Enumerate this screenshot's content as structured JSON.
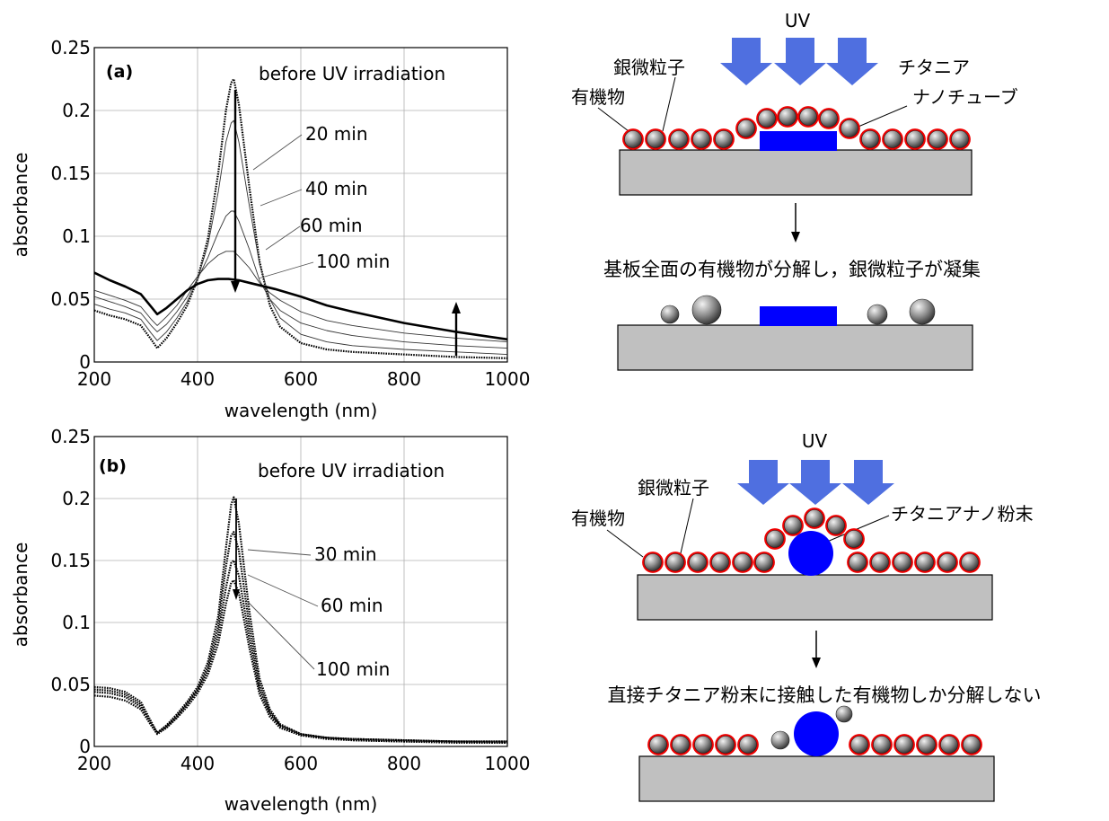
{
  "chart_data": [
    {
      "type": "line",
      "panel_label": "(a)",
      "xlabel": "wavelength (nm)",
      "ylabel": "absorbance",
      "xlim": [
        200,
        1000
      ],
      "ylim": [
        0,
        0.25
      ],
      "x_ticks": [
        "200",
        "400",
        "600",
        "800",
        "1000"
      ],
      "y_ticks": [
        "0",
        "0.05",
        "0.1",
        "0.15",
        "0.2",
        "0.25"
      ],
      "grid": true,
      "series": [
        {
          "name": "before UV irradiation",
          "style": "dotted-bold",
          "x": [
            200,
            230,
            260,
            290,
            310,
            322,
            340,
            360,
            380,
            400,
            420,
            440,
            455,
            465,
            470,
            480,
            500,
            520,
            540,
            560,
            600,
            650,
            700,
            800,
            900,
            1000
          ],
          "y": [
            0.041,
            0.037,
            0.034,
            0.029,
            0.018,
            0.011,
            0.019,
            0.031,
            0.045,
            0.066,
            0.098,
            0.15,
            0.2,
            0.222,
            0.225,
            0.205,
            0.14,
            0.08,
            0.045,
            0.028,
            0.015,
            0.01,
            0.008,
            0.006,
            0.004,
            0.003
          ]
        },
        {
          "name": "20 min",
          "style": "thin",
          "x": [
            200,
            230,
            260,
            290,
            310,
            322,
            340,
            360,
            380,
            400,
            420,
            440,
            455,
            465,
            470,
            480,
            500,
            520,
            540,
            560,
            600,
            650,
            700,
            800,
            900,
            1000
          ],
          "y": [
            0.046,
            0.042,
            0.039,
            0.034,
            0.023,
            0.017,
            0.024,
            0.035,
            0.048,
            0.066,
            0.093,
            0.135,
            0.175,
            0.19,
            0.192,
            0.175,
            0.125,
            0.078,
            0.05,
            0.035,
            0.022,
            0.016,
            0.013,
            0.01,
            0.008,
            0.006
          ]
        },
        {
          "name": "40 min",
          "style": "thin",
          "x": [
            200,
            230,
            260,
            290,
            310,
            322,
            340,
            360,
            380,
            400,
            420,
            440,
            455,
            465,
            470,
            480,
            500,
            520,
            540,
            560,
            600,
            650,
            700,
            800,
            900,
            1000
          ],
          "y": [
            0.052,
            0.048,
            0.044,
            0.039,
            0.029,
            0.024,
            0.03,
            0.04,
            0.052,
            0.066,
            0.083,
            0.103,
            0.116,
            0.12,
            0.12,
            0.112,
            0.09,
            0.065,
            0.05,
            0.041,
            0.031,
            0.025,
            0.021,
            0.016,
            0.013,
            0.011
          ]
        },
        {
          "name": "60 min",
          "style": "thin",
          "x": [
            200,
            230,
            260,
            290,
            310,
            322,
            340,
            360,
            380,
            400,
            420,
            440,
            455,
            465,
            470,
            480,
            500,
            520,
            540,
            560,
            600,
            650,
            700,
            800,
            900,
            1000
          ],
          "y": [
            0.057,
            0.053,
            0.049,
            0.044,
            0.034,
            0.029,
            0.036,
            0.045,
            0.057,
            0.068,
            0.078,
            0.085,
            0.088,
            0.088,
            0.088,
            0.084,
            0.075,
            0.063,
            0.055,
            0.049,
            0.04,
            0.033,
            0.029,
            0.023,
            0.019,
            0.016
          ]
        },
        {
          "name": "100 min",
          "style": "bold",
          "x": [
            200,
            230,
            260,
            290,
            310,
            322,
            340,
            360,
            380,
            400,
            420,
            440,
            460,
            480,
            500,
            550,
            600,
            650,
            700,
            800,
            900,
            1000
          ],
          "y": [
            0.071,
            0.065,
            0.06,
            0.054,
            0.044,
            0.038,
            0.043,
            0.05,
            0.057,
            0.062,
            0.065,
            0.066,
            0.066,
            0.065,
            0.063,
            0.058,
            0.052,
            0.045,
            0.04,
            0.031,
            0.024,
            0.018
          ]
        }
      ],
      "annotations": [
        {
          "text": "before UV irradiation"
        },
        {
          "text": "20 min"
        },
        {
          "text": "40 min"
        },
        {
          "text": "60 min"
        },
        {
          "text": "100 min"
        }
      ]
    },
    {
      "type": "line",
      "panel_label": "(b)",
      "xlabel": "wavelength (nm)",
      "ylabel": "absorbance",
      "xlim": [
        200,
        1000
      ],
      "ylim": [
        0,
        0.25
      ],
      "x_ticks": [
        "200",
        "400",
        "600",
        "800",
        "1000"
      ],
      "y_ticks": [
        "0",
        "0.05",
        "0.1",
        "0.15",
        "0.2",
        "0.25"
      ],
      "grid": true,
      "series": [
        {
          "name": "before UV irradiation",
          "style": "dotted-bold",
          "x": [
            200,
            230,
            260,
            290,
            310,
            322,
            340,
            360,
            380,
            400,
            420,
            440,
            455,
            465,
            470,
            480,
            500,
            520,
            540,
            560,
            600,
            650,
            700,
            800,
            900,
            1000
          ],
          "y": [
            0.048,
            0.047,
            0.044,
            0.036,
            0.02,
            0.011,
            0.017,
            0.026,
            0.036,
            0.048,
            0.068,
            0.105,
            0.16,
            0.195,
            0.201,
            0.18,
            0.11,
            0.055,
            0.03,
            0.018,
            0.01,
            0.007,
            0.006,
            0.005,
            0.004,
            0.004
          ]
        },
        {
          "name": "30 min",
          "style": "dotted-bold",
          "x": [
            200,
            230,
            260,
            290,
            310,
            322,
            340,
            360,
            380,
            400,
            420,
            440,
            455,
            465,
            470,
            480,
            500,
            520,
            540,
            560,
            600,
            650,
            700,
            800,
            900,
            1000
          ],
          "y": [
            0.046,
            0.045,
            0.042,
            0.034,
            0.019,
            0.011,
            0.017,
            0.025,
            0.035,
            0.046,
            0.064,
            0.097,
            0.145,
            0.17,
            0.173,
            0.158,
            0.098,
            0.05,
            0.028,
            0.017,
            0.01,
            0.007,
            0.006,
            0.005,
            0.004,
            0.004
          ]
        },
        {
          "name": "60 min",
          "style": "dotted-bold",
          "x": [
            200,
            230,
            260,
            290,
            310,
            322,
            340,
            360,
            380,
            400,
            420,
            440,
            455,
            465,
            470,
            480,
            500,
            520,
            540,
            560,
            600,
            650,
            700,
            800,
            900,
            1000
          ],
          "y": [
            0.044,
            0.043,
            0.04,
            0.032,
            0.018,
            0.011,
            0.016,
            0.024,
            0.034,
            0.045,
            0.061,
            0.09,
            0.128,
            0.148,
            0.15,
            0.138,
            0.088,
            0.046,
            0.026,
            0.016,
            0.009,
            0.007,
            0.005,
            0.004,
            0.004,
            0.003
          ]
        },
        {
          "name": "100 min",
          "style": "dotted-bold",
          "x": [
            200,
            230,
            260,
            290,
            310,
            322,
            340,
            360,
            380,
            400,
            420,
            440,
            455,
            465,
            470,
            480,
            500,
            520,
            540,
            560,
            600,
            650,
            700,
            800,
            900,
            1000
          ],
          "y": [
            0.041,
            0.04,
            0.037,
            0.03,
            0.017,
            0.01,
            0.015,
            0.023,
            0.032,
            0.043,
            0.058,
            0.083,
            0.115,
            0.132,
            0.134,
            0.124,
            0.08,
            0.042,
            0.024,
            0.015,
            0.009,
            0.006,
            0.005,
            0.004,
            0.003,
            0.003
          ]
        }
      ],
      "annotations": [
        {
          "text": "before UV irradiation"
        },
        {
          "text": "30 min"
        },
        {
          "text": "60 min"
        },
        {
          "text": "100 min"
        }
      ]
    }
  ],
  "diagrams": {
    "top": {
      "uv_label": "UV",
      "label_silver": "銀微粒子",
      "label_organic": "有機物",
      "label_titania_1": "チタニア",
      "label_titania_2": "ナノチューブ",
      "caption": "基板全面の有機物が分解し，銀微粒子が凝集"
    },
    "bottom": {
      "uv_label": "UV",
      "label_silver": "銀微粒子",
      "label_organic": "有機物",
      "label_titania": "チタニアナノ粉末",
      "caption": "直接チタニア粉末に接触した有機物しか分解しない"
    }
  },
  "colors": {
    "uv_arrow": "#4f6fe0",
    "titania": "#0000ff",
    "organic_shell": "#ee0000",
    "substrate": "#c0c0c0",
    "particle_light": "#e8e8e8",
    "particle_dark": "#3a3a3a"
  }
}
